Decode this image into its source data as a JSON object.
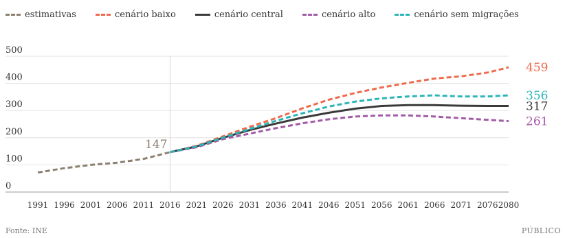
{
  "chart_data": {
    "type": "line",
    "title": "",
    "xlabel": "",
    "ylabel": "",
    "ylim": [
      0,
      500
    ],
    "yticks": [
      "0",
      "100",
      "200",
      "300",
      "400",
      "500"
    ],
    "xticks": [
      "1991",
      "1996",
      "2001",
      "2006",
      "2011",
      "2016",
      "2021",
      "2026",
      "2031",
      "2036",
      "2041",
      "2046",
      "2051",
      "2056",
      "2061",
      "2066",
      "2071",
      "2076",
      "2080"
    ],
    "grid": true,
    "legend_position": "top",
    "series": [
      {
        "name": "estimativas",
        "color": "#8b8070",
        "dash": true,
        "x": [
          1991,
          1996,
          2001,
          2006,
          2011,
          2016
        ],
        "y": [
          72,
          88,
          100,
          108,
          122,
          147
        ]
      },
      {
        "name": "cenário baixo",
        "color": "#ef6a4c",
        "dash": true,
        "x": [
          2016,
          2021,
          2026,
          2031,
          2036,
          2041,
          2046,
          2051,
          2056,
          2061,
          2066,
          2071,
          2076,
          2080
        ],
        "y": [
          147,
          170,
          205,
          240,
          272,
          308,
          340,
          365,
          385,
          402,
          418,
          426,
          440,
          459
        ]
      },
      {
        "name": "cenário central",
        "color": "#3a3a3a",
        "dash": false,
        "x": [
          2016,
          2021,
          2026,
          2031,
          2036,
          2041,
          2046,
          2051,
          2056,
          2061,
          2066,
          2071,
          2076,
          2080
        ],
        "y": [
          147,
          168,
          200,
          228,
          252,
          274,
          292,
          307,
          317,
          320,
          320,
          318,
          317,
          317
        ]
      },
      {
        "name": "cenário alto",
        "color": "#a35aa8",
        "dash": true,
        "x": [
          2016,
          2021,
          2026,
          2031,
          2036,
          2041,
          2046,
          2051,
          2056,
          2061,
          2066,
          2071,
          2076,
          2080
        ],
        "y": [
          147,
          165,
          195,
          215,
          235,
          253,
          268,
          278,
          282,
          282,
          278,
          272,
          266,
          261
        ]
      },
      {
        "name": "cenário sem migrações",
        "color": "#2bb5b8",
        "dash": true,
        "x": [
          2016,
          2021,
          2026,
          2031,
          2036,
          2041,
          2046,
          2051,
          2056,
          2061,
          2066,
          2071,
          2076,
          2080
        ],
        "y": [
          147,
          168,
          200,
          232,
          262,
          290,
          315,
          333,
          345,
          352,
          356,
          352,
          352,
          356
        ]
      }
    ],
    "annotations": [
      {
        "text": "147",
        "x": 2016,
        "y": 147,
        "color": "#8b8070"
      },
      {
        "text": "459",
        "x": 2080,
        "y": 459,
        "color": "#ef6a4c"
      },
      {
        "text": "356",
        "x": 2080,
        "y": 356,
        "color": "#2bb5b8"
      },
      {
        "text": "317",
        "x": 2080,
        "y": 317,
        "color": "#3a3a3a"
      },
      {
        "text": "261",
        "x": 2080,
        "y": 261,
        "color": "#a35aa8"
      }
    ]
  },
  "footer": {
    "source": "Fonte: INE",
    "credit": "PÚBLICO"
  }
}
